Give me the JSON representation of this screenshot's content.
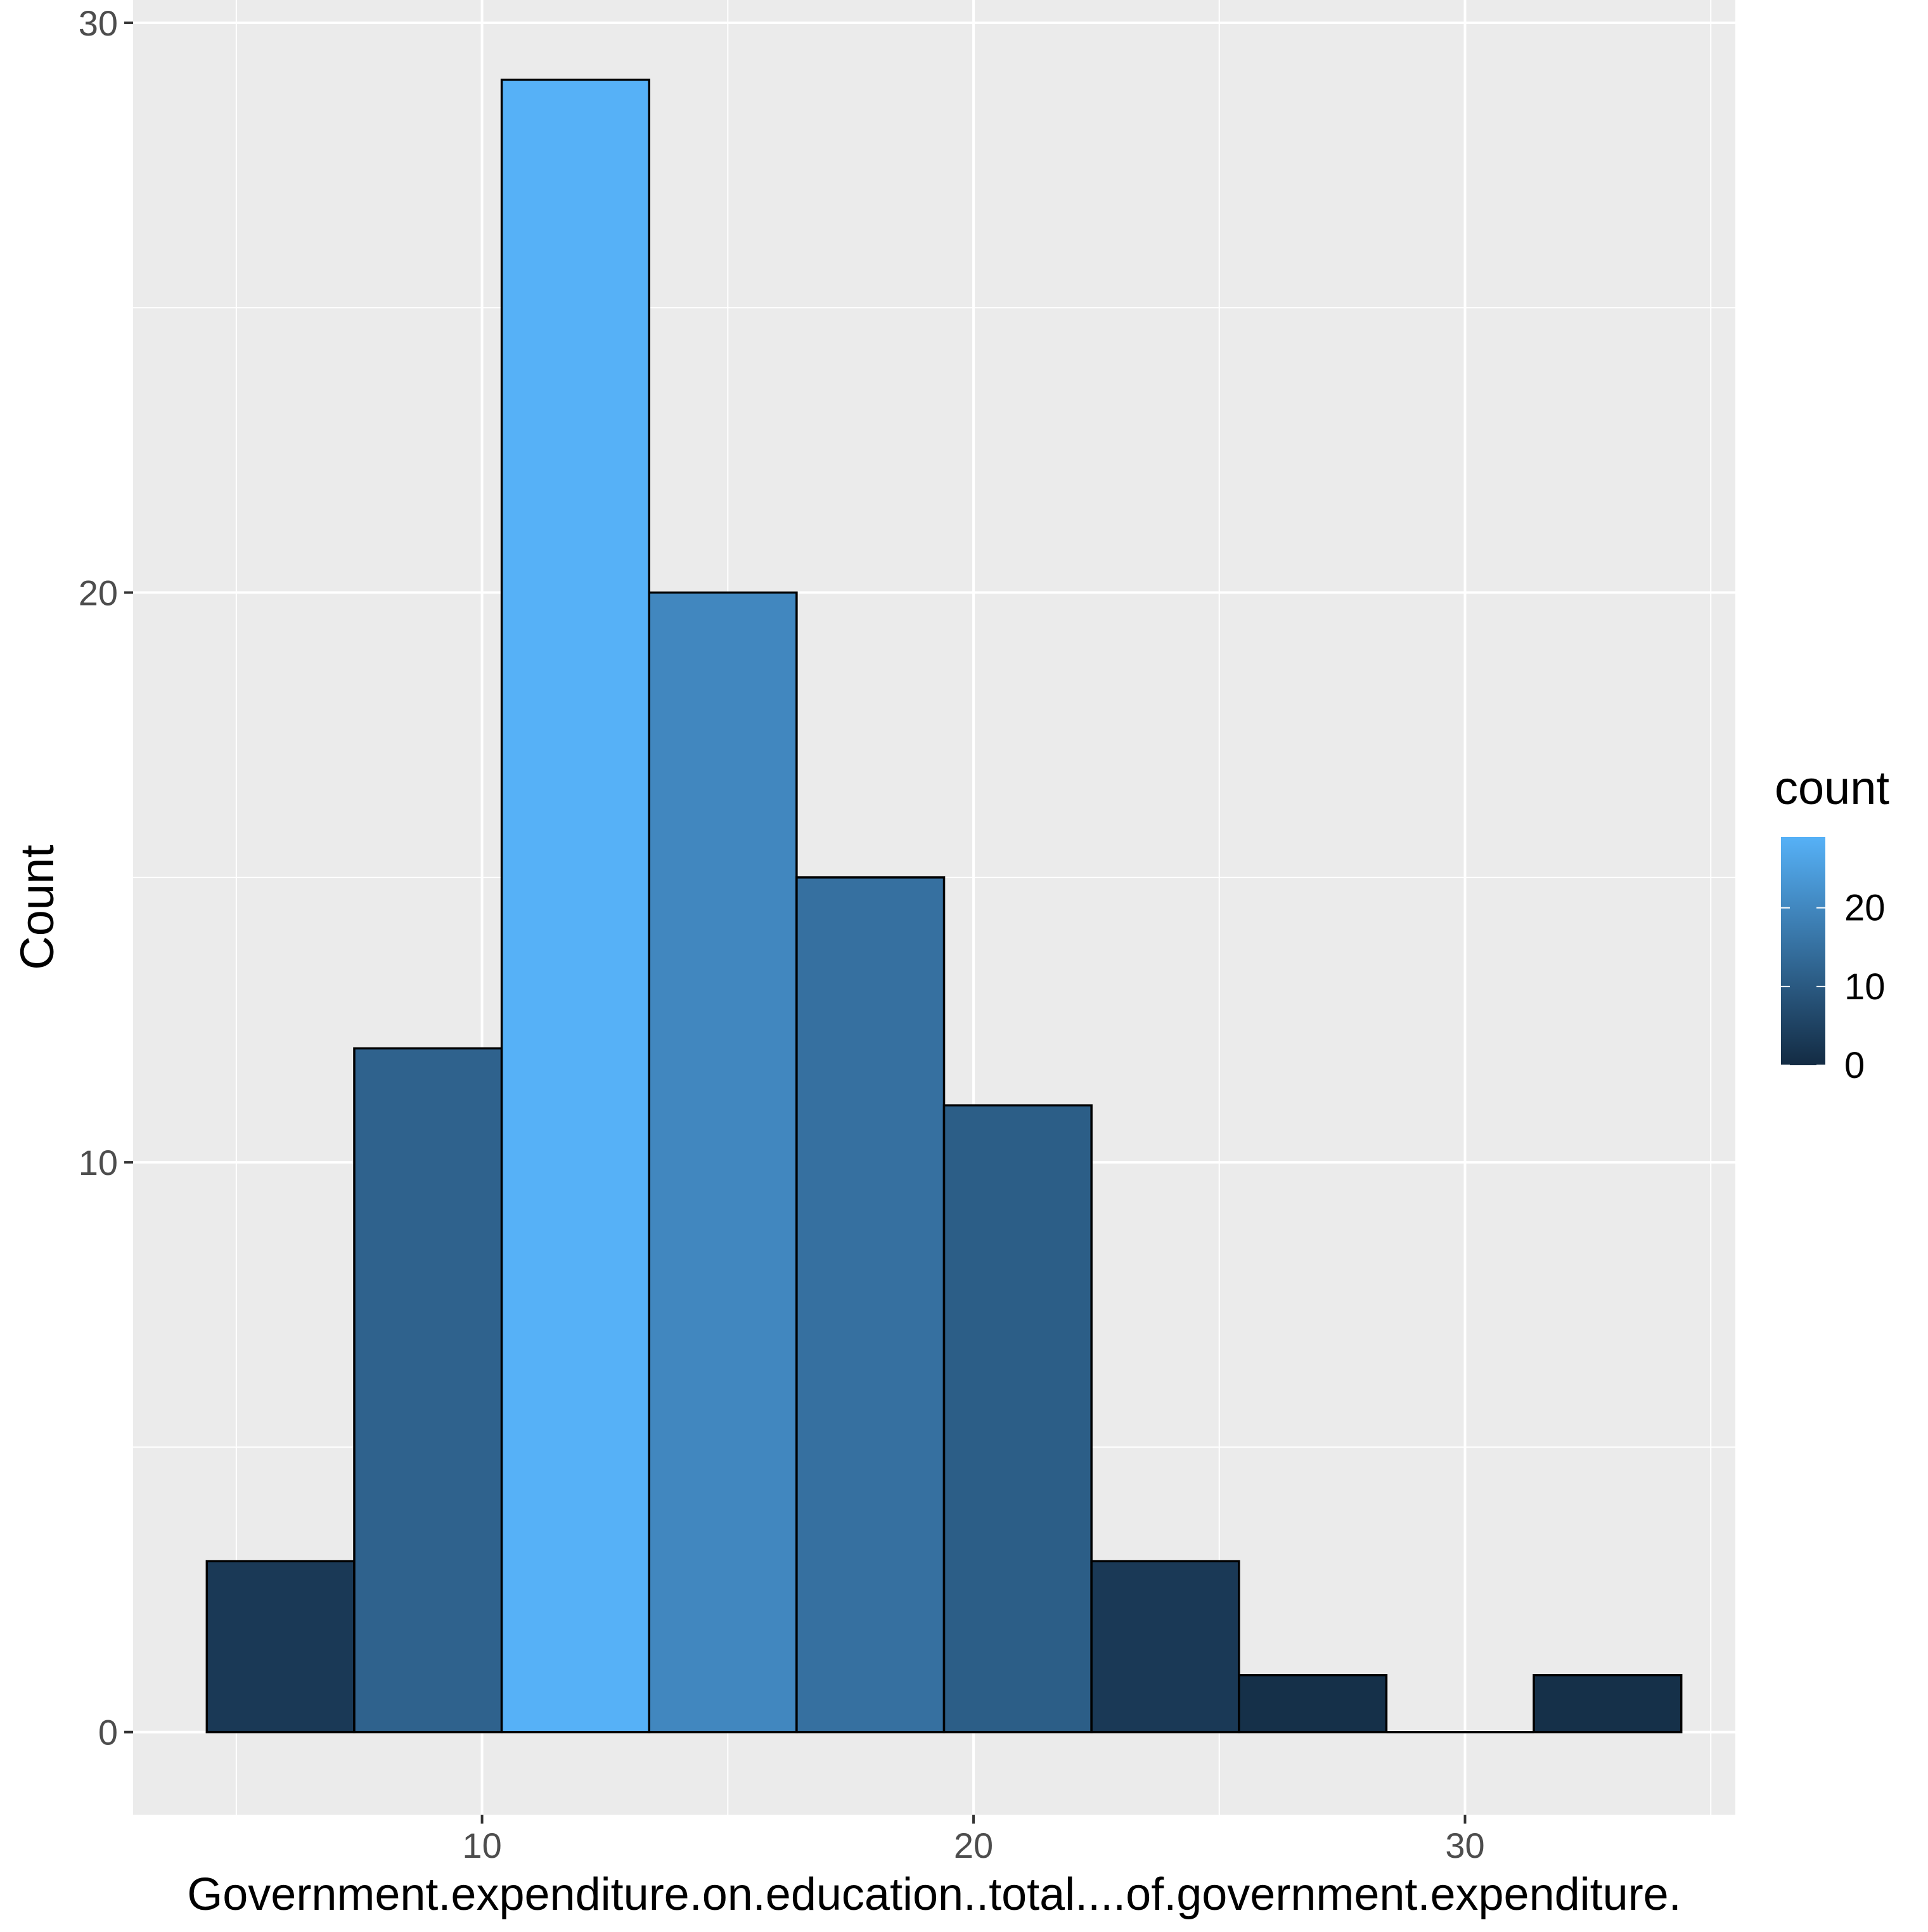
{
  "chart_data": {
    "type": "bar",
    "chart_kind": "histogram",
    "xlabel": "Government.expenditure.on.education..total....of.government.expenditure.",
    "ylabel": "Count",
    "xlim": [
      2.9,
      35.5
    ],
    "ylim": [
      -1.45,
      30.4
    ],
    "x_ticks": [
      10,
      20,
      30
    ],
    "y_ticks": [
      0,
      10,
      20,
      30
    ],
    "grid": true,
    "bins": [
      {
        "x_min": 4.4,
        "x_max": 7.4,
        "count": 3
      },
      {
        "x_min": 7.4,
        "x_max": 10.4,
        "count": 12
      },
      {
        "x_min": 10.4,
        "x_max": 13.4,
        "count": 29
      },
      {
        "x_min": 13.4,
        "x_max": 16.4,
        "count": 20
      },
      {
        "x_min": 16.4,
        "x_max": 19.4,
        "count": 15
      },
      {
        "x_min": 19.4,
        "x_max": 22.4,
        "count": 11
      },
      {
        "x_min": 22.4,
        "x_max": 25.4,
        "count": 3
      },
      {
        "x_min": 25.4,
        "x_max": 28.4,
        "count": 1
      },
      {
        "x_min": 28.4,
        "x_max": 31.4,
        "count": 0
      },
      {
        "x_min": 31.4,
        "x_max": 34.4,
        "count": 1
      }
    ],
    "legend": {
      "title": "count",
      "position": "right",
      "ticks": [
        0,
        10,
        20
      ],
      "range": [
        0,
        29
      ],
      "color_low": "#132B43",
      "color_high": "#56B1F7"
    },
    "colors": {
      "panel_bg": "#EBEBEB",
      "grid": "#FFFFFF",
      "bar_outline": "#000000",
      "tick_text": "#4D4D4D",
      "title_text": "#000000"
    }
  }
}
